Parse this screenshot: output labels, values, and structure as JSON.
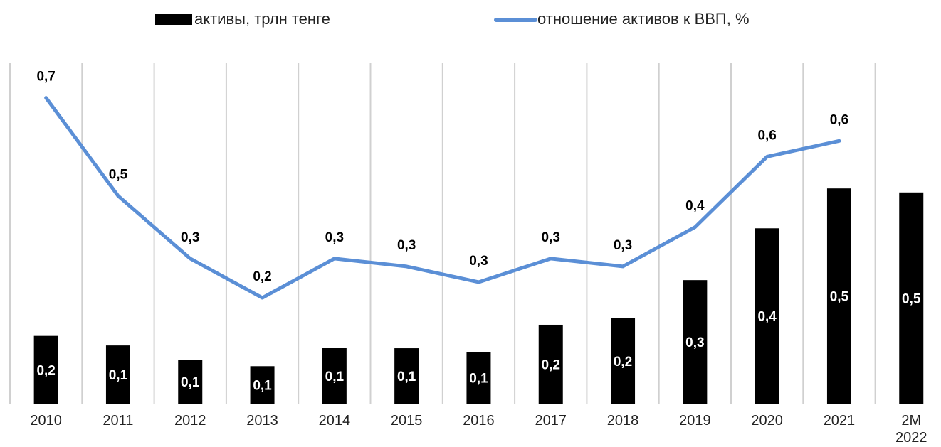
{
  "chart_data": {
    "type": "bar",
    "categories": [
      "2010",
      "2011",
      "2012",
      "2013",
      "2014",
      "2015",
      "2016",
      "2017",
      "2018",
      "2019",
      "2020",
      "2021",
      "2M\n2022"
    ],
    "series": [
      {
        "name": "активы, трлн тенге",
        "type": "bar",
        "color": "#000000",
        "values": [
          0.17,
          0.146,
          0.11,
          0.094,
          0.14,
          0.139,
          0.13,
          0.198,
          0.214,
          0.31,
          0.44,
          0.54,
          0.53
        ],
        "value_labels": [
          "0,2",
          "0,1",
          "0,1",
          "0,1",
          "0,1",
          "0,1",
          "0,1",
          "0,2",
          "0,2",
          "0,3",
          "0,4",
          "0,5",
          "0,5"
        ]
      },
      {
        "name": "отношение активов к ВВП, %",
        "type": "line",
        "axis": "y2",
        "color": "#5b8fd6",
        "values": [
          0.72,
          0.47,
          0.31,
          0.21,
          0.31,
          0.29,
          0.25,
          0.31,
          0.29,
          0.39,
          0.57,
          0.61,
          null
        ],
        "value_labels": [
          "0,7",
          "0,5",
          "0,3",
          "0,2",
          "0,3",
          "0,3",
          "0,3",
          "0,3",
          "0,3",
          "0,4",
          "0,6",
          "0,6",
          null
        ]
      }
    ],
    "ylim": [
      0,
      0.856
    ],
    "y2lim": [
      -0.06,
      0.81
    ],
    "legend": "top"
  }
}
